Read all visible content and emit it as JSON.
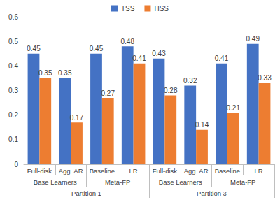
{
  "chart_data": {
    "type": "bar",
    "categories": [
      "Full-disk",
      "Agg. AR",
      "Baseline",
      "LR",
      "Full-disk",
      "Agg. AR",
      "Baseline",
      "LR"
    ],
    "category_groups": [
      "Base Learners",
      "Base Learners",
      "Meta-FP",
      "Meta-FP",
      "Base Learners",
      "Base Learners",
      "Meta-FP",
      "Meta-FP"
    ],
    "category_partitions": [
      "Partition 1",
      "Partition 1",
      "Partition 1",
      "Partition 1",
      "Partition 3",
      "Partition 3",
      "Partition 3",
      "Partition 3"
    ],
    "series": [
      {
        "name": "TSS",
        "color": "#4472c4",
        "values": [
          0.45,
          0.35,
          0.45,
          0.48,
          0.43,
          0.32,
          0.41,
          0.49
        ]
      },
      {
        "name": "HSS",
        "color": "#ed7d31",
        "values": [
          0.35,
          0.17,
          0.27,
          0.41,
          0.28,
          0.14,
          0.21,
          0.33
        ]
      }
    ],
    "ylim": [
      0,
      0.6
    ],
    "yticks": [
      0,
      0.1,
      0.2,
      0.3,
      0.4,
      0.5,
      0.6
    ],
    "grid": false,
    "legend": "top",
    "data_labels": true
  }
}
